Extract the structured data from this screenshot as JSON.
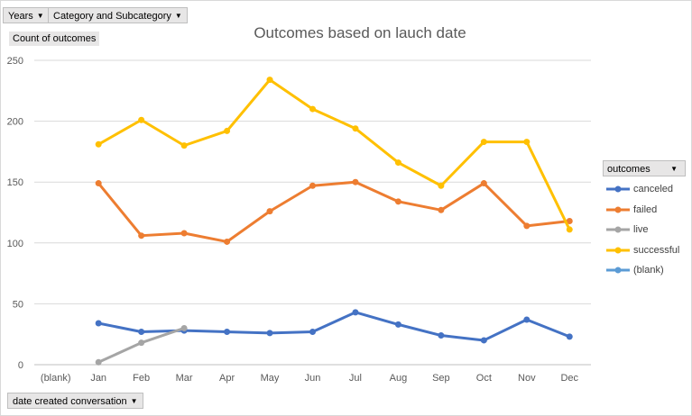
{
  "filters": {
    "years": "Years",
    "category": "Category and Subcategory"
  },
  "value_field": "Count of outcomes",
  "axis_field": "date created conversation",
  "legend_field": "outcomes",
  "colors": {
    "canceled": "#4472c4",
    "failed": "#ed7d31",
    "live": "#a5a5a5",
    "successful": "#ffc000",
    "blank": "#5b9bd5"
  },
  "chart_data": {
    "type": "line",
    "title": "Outcomes based on lauch date",
    "categories": [
      "(blank)",
      "Jan",
      "Feb",
      "Mar",
      "Apr",
      "May",
      "Jun",
      "Jul",
      "Aug",
      "Sep",
      "Oct",
      "Nov",
      "Dec"
    ],
    "ylim": [
      0,
      250
    ],
    "yticks": [
      0,
      50,
      100,
      150,
      200,
      250
    ],
    "grid": true,
    "legend_position": "right",
    "series": [
      {
        "name": "canceled",
        "values": [
          null,
          34,
          27,
          28,
          27,
          26,
          27,
          43,
          33,
          24,
          20,
          37,
          23
        ]
      },
      {
        "name": "failed",
        "values": [
          null,
          149,
          106,
          108,
          101,
          126,
          147,
          150,
          134,
          127,
          149,
          114,
          118
        ]
      },
      {
        "name": "live",
        "values": [
          null,
          2,
          18,
          30,
          null,
          null,
          null,
          null,
          null,
          null,
          null,
          null,
          null
        ]
      },
      {
        "name": "successful",
        "values": [
          null,
          181,
          201,
          180,
          192,
          234,
          210,
          194,
          166,
          147,
          183,
          183,
          111
        ]
      },
      {
        "name": "(blank)",
        "values": [
          null,
          null,
          null,
          null,
          null,
          null,
          null,
          null,
          null,
          null,
          null,
          null,
          null
        ]
      }
    ]
  }
}
